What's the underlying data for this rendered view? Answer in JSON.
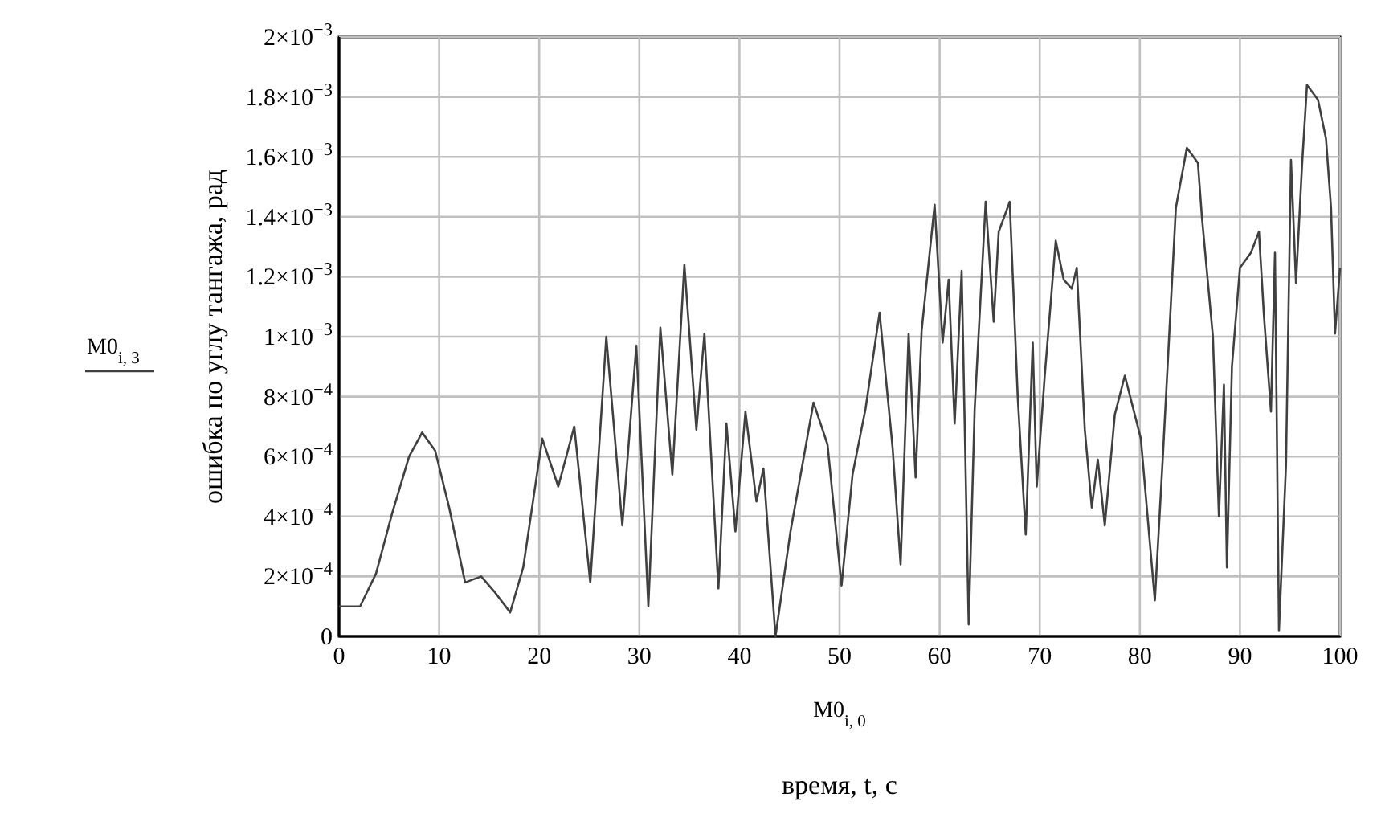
{
  "chart_data": {
    "type": "line",
    "xlabel": "время, t, с",
    "ylabel": "ошибка по углу тангажа, рад",
    "annotations": [
      "M0$_{i, 0}$"
    ],
    "legend": "left",
    "grid": true,
    "line_style": "solid",
    "marker": "none",
    "xlim": [
      0,
      100
    ],
    "xticks": [
      0,
      10,
      20,
      30,
      40,
      50,
      60,
      70,
      80,
      90,
      100
    ],
    "ylim": [
      0,
      0.002
    ],
    "yticks": [
      0,
      {
        "value": 0.0002,
        "label": "2×10$^{−4}$"
      },
      {
        "value": 0.0004,
        "label": "4×10$^{−4}$"
      },
      {
        "value": 0.0006,
        "label": "6×10$^{−4}$"
      },
      {
        "value": 0.0008,
        "label": "8×10$^{−4}$"
      },
      {
        "value": 0.001,
        "label": "1×10$^{−3}$"
      },
      {
        "value": 0.0012,
        "label": "1.2×10$^{−3}$"
      },
      {
        "value": 0.0014,
        "label": "1.4×10$^{−3}$"
      },
      {
        "value": 0.0016,
        "label": "1.6×10$^{−3}$"
      },
      {
        "value": 0.0018,
        "label": "1.8×10$^{−3}$"
      },
      {
        "value": 0.002,
        "label": "2×10$^{−3}$"
      }
    ],
    "x": [
      0,
      2.1,
      3.7,
      5.3,
      7,
      8.3,
      9.6,
      11,
      12.6,
      14.2,
      15.5,
      17.1,
      18.4,
      20.3,
      21.9,
      23.5,
      25.1,
      26.7,
      28.3,
      29.7,
      30.9,
      32.1,
      33.3,
      34.5,
      35.7,
      36.5,
      37.9,
      38.7,
      39.6,
      40.6,
      41.7,
      42.4,
      43.6,
      45.1,
      47.4,
      48.8,
      50.2,
      51.3,
      52.6,
      54,
      55.3,
      56.1,
      56.9,
      57.6,
      58.2,
      59.5,
      60.3,
      60.9,
      61.5,
      62.2,
      62.9,
      63.5,
      64.6,
      65.4,
      65.9,
      67,
      67.8,
      68.6,
      69.3,
      69.7,
      70.5,
      71.6,
      72.4,
      73.2,
      73.7,
      74.5,
      75.2,
      75.8,
      76.5,
      77.5,
      78.5,
      80.1,
      81.5,
      82.3,
      83.6,
      84.7,
      85.8,
      86.2,
      87.3,
      87.9,
      88.4,
      88.7,
      89.2,
      90,
      91.1,
      91.9,
      92.4,
      93.1,
      93.5,
      93.9,
      94.6,
      95.1,
      95.6,
      96.2,
      96.7,
      97.8,
      98.6,
      99.1,
      99.5,
      100
    ],
    "series": [
      {
        "name": "M0$_{i, 3}$",
        "color": "#404040",
        "values": [
          0.0001,
          0.0001,
          0.00021,
          0.00041,
          0.0006,
          0.00068,
          0.00062,
          0.00043,
          0.00018,
          0.0002,
          0.00015,
          8e-05,
          0.00023,
          0.00066,
          0.0005,
          0.0007,
          0.00018,
          0.001,
          0.00037,
          0.00097,
          0.0001,
          0.00103,
          0.00054,
          0.00124,
          0.00069,
          0.00101,
          0.00016,
          0.00071,
          0.00035,
          0.00075,
          0.00045,
          0.00056,
          0,
          0.00035,
          0.00078,
          0.00064,
          0.00017,
          0.00054,
          0.00076,
          0.00108,
          0.00063,
          0.00024,
          0.00101,
          0.00053,
          0.00102,
          0.00144,
          0.00098,
          0.00119,
          0.00071,
          0.00122,
          4e-05,
          0.00076,
          0.00145,
          0.00105,
          0.00135,
          0.00145,
          0.0008,
          0.00034,
          0.00098,
          0.0005,
          0.00087,
          0.00132,
          0.00119,
          0.00116,
          0.00123,
          0.00069,
          0.00043,
          0.00059,
          0.00037,
          0.00074,
          0.00087,
          0.00066,
          0.00012,
          0.0006,
          0.00143,
          0.00163,
          0.00158,
          0.0014,
          0.001,
          0.0004,
          0.00084,
          0.00023,
          0.0009,
          0.00123,
          0.00128,
          0.00135,
          0.00107,
          0.00075,
          0.00128,
          2e-05,
          0.00057,
          0.00159,
          0.00118,
          0.00157,
          0.00184,
          0.00179,
          0.00166,
          0.00143,
          0.00101,
          0.00123
        ]
      }
    ]
  }
}
